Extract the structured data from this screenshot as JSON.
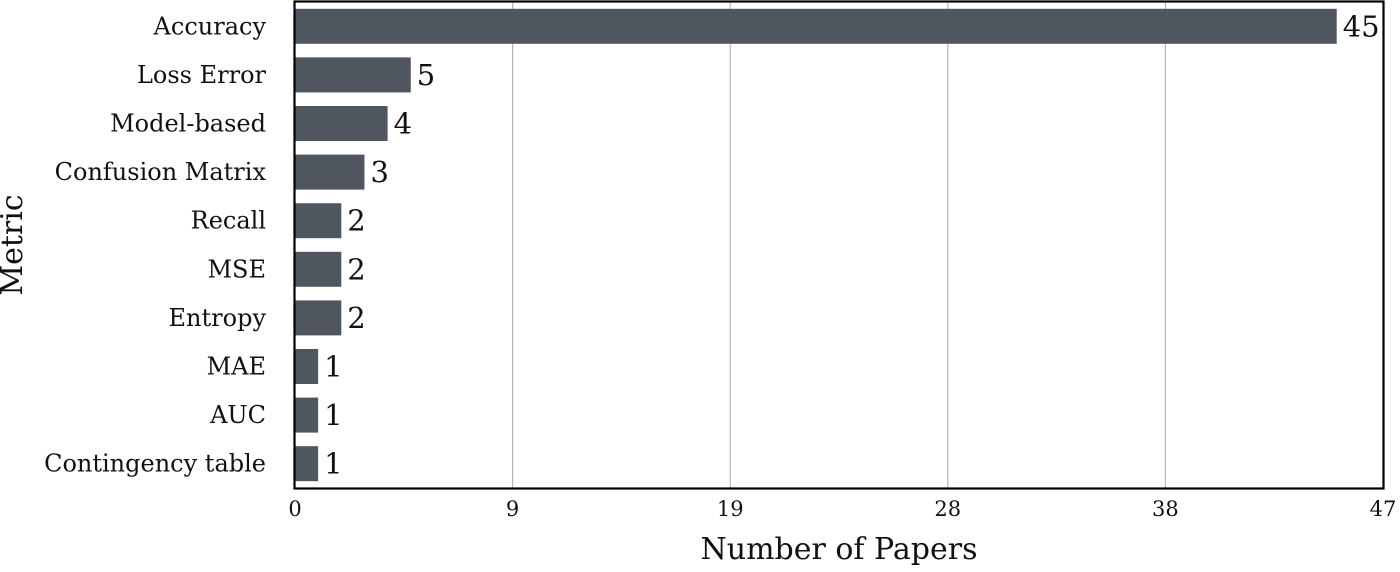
{
  "chart_data": {
    "type": "bar",
    "orientation": "horizontal",
    "categories": [
      "Accuracy",
      "Loss Error",
      "Model-based",
      "Confusion Matrix",
      "Recall",
      "MSE",
      "Entropy",
      "MAE",
      "AUC",
      "Contingency table"
    ],
    "values": [
      45,
      5,
      4,
      3,
      2,
      2,
      2,
      1,
      1,
      1
    ],
    "value_labels": [
      "45",
      "5",
      "4",
      "3",
      "2",
      "2",
      "2",
      "1",
      "1",
      "1"
    ],
    "title": "",
    "xlabel": "Number of Papers",
    "ylabel": "Metric",
    "xlim": [
      0,
      47
    ],
    "xticks": [
      0,
      9.4,
      18.8,
      28.2,
      37.6,
      47
    ],
    "xtick_labels": [
      "0",
      "9",
      "19",
      "28",
      "38",
      "47"
    ],
    "grid": "vertical",
    "bar_color": "#4f5660"
  }
}
